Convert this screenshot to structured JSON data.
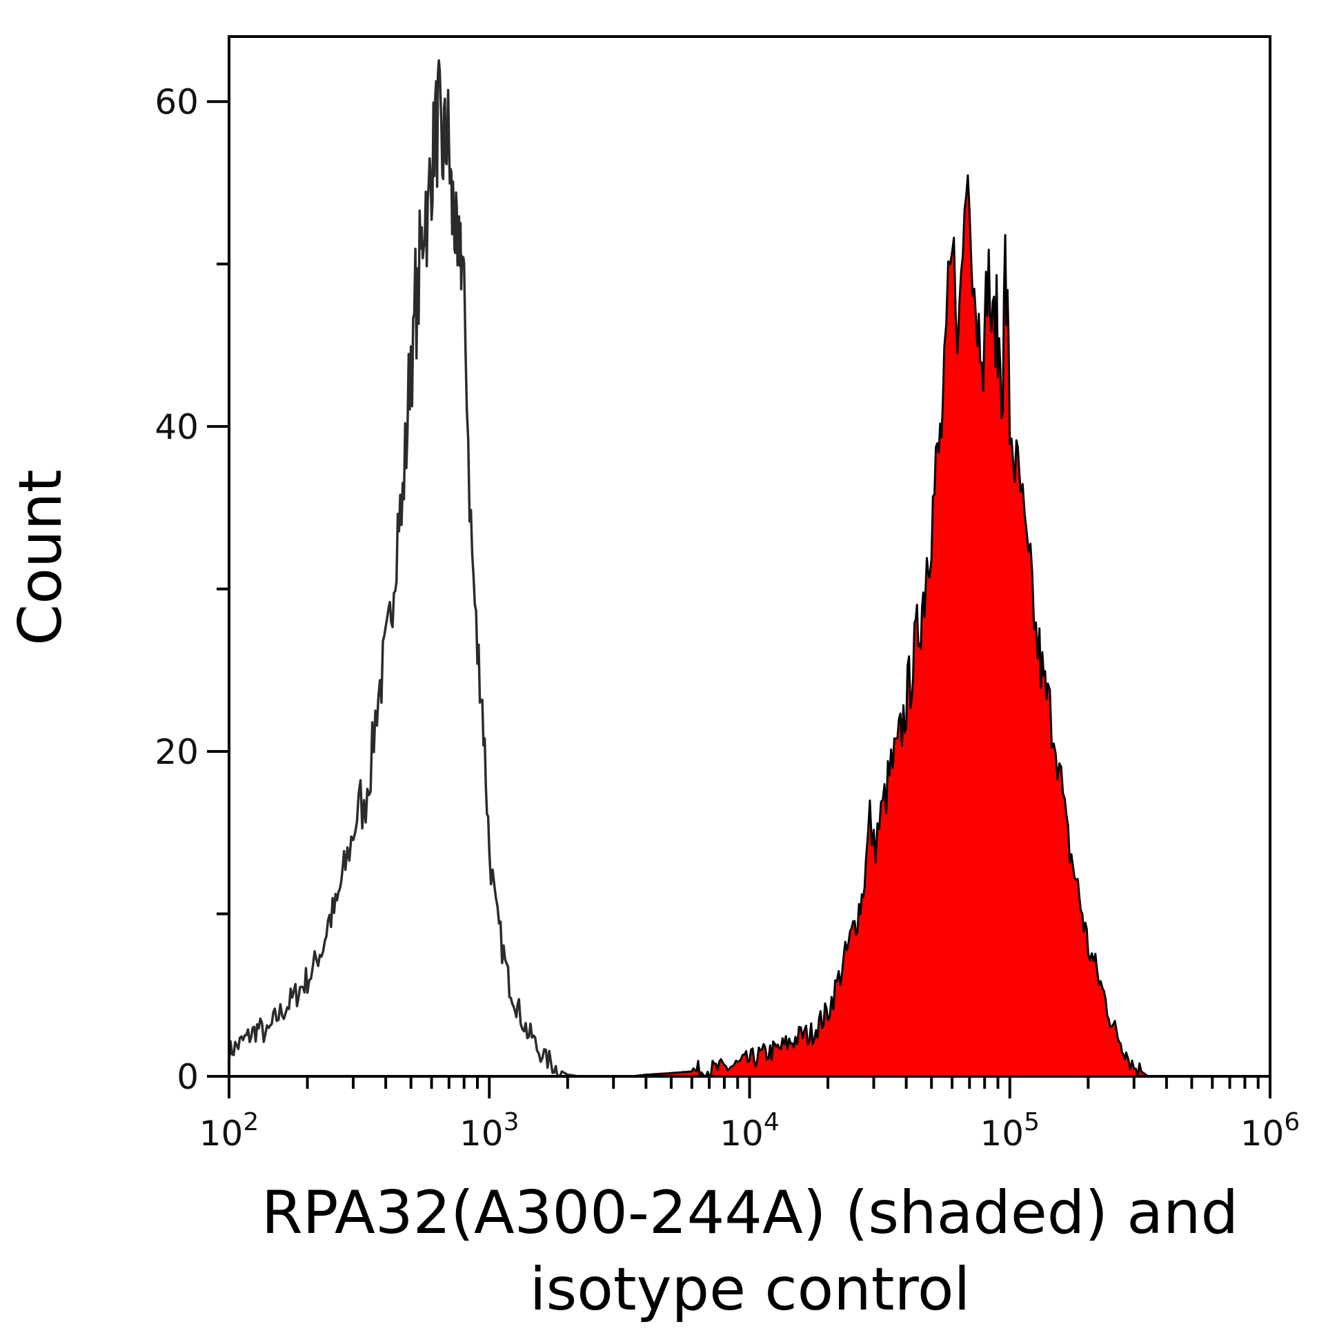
{
  "chart_data": {
    "type": "area",
    "xscale": "log",
    "xlim": [
      100,
      1000000
    ],
    "ylim": [
      0,
      64
    ],
    "grid": false,
    "legend": "none",
    "title": "",
    "xlabel_lines": [
      "RPA32(A300-244A) (shaded) and",
      "isotype control"
    ],
    "ylabel": "Count",
    "x_ticks": [
      {
        "value": 100,
        "base": "10",
        "exp": "2"
      },
      {
        "value": 1000,
        "base": "10",
        "exp": "3"
      },
      {
        "value": 10000,
        "base": "10",
        "exp": "4"
      },
      {
        "value": 100000,
        "base": "10",
        "exp": "5"
      },
      {
        "value": 1000000,
        "base": "10",
        "exp": "6"
      }
    ],
    "y_ticks": [
      {
        "value": 0,
        "label": "0"
      },
      {
        "value": 20,
        "label": "20"
      },
      {
        "value": 40,
        "label": "40"
      },
      {
        "value": 60,
        "label": "60"
      }
    ],
    "y_minor_ticks": [
      10,
      30,
      50
    ],
    "colors": {
      "shaded_fill": "#ff0000",
      "shaded_line": "#000000",
      "outline": "#2b2b2b",
      "axis": "#000000"
    },
    "series": [
      {
        "style": "outline",
        "x": [
          100,
          110,
          120,
          130,
          140,
          150,
          160,
          170,
          180,
          190,
          200,
          210,
          220,
          230,
          240,
          250,
          260,
          270,
          280,
          290,
          300,
          310,
          320,
          330,
          340,
          350,
          360,
          370,
          380,
          390,
          400,
          410,
          420,
          430,
          440,
          450,
          460,
          470,
          480,
          490,
          500,
          510,
          520,
          530,
          540,
          550,
          560,
          570,
          580,
          590,
          600,
          610,
          620,
          630,
          640,
          650,
          660,
          670,
          680,
          690,
          700,
          710,
          720,
          730,
          740,
          750,
          760,
          770,
          780,
          790,
          800,
          820,
          840,
          860,
          880,
          900,
          920,
          940,
          960,
          980,
          1000,
          1030,
          1060,
          1090,
          1120,
          1150,
          1180,
          1210,
          1240,
          1270,
          1300,
          1340,
          1380,
          1420,
          1460,
          1500,
          1550,
          1600,
          1650,
          1700,
          1750,
          1800,
          1850,
          1900,
          1950,
          2000,
          2100,
          2200
        ],
        "y": [
          1.5,
          2,
          2.5,
          3,
          2.5,
          3.5,
          4,
          4.5,
          5,
          5.5,
          6,
          6.5,
          7.5,
          8,
          9.5,
          10,
          10.5,
          12,
          13,
          14,
          15,
          16,
          17,
          16,
          18,
          19,
          21,
          23,
          24,
          25,
          26,
          27,
          29,
          31,
          33,
          35,
          34,
          37,
          39,
          42,
          45,
          44,
          48,
          47,
          50,
          51,
          53,
          54,
          52,
          55,
          56,
          57,
          59,
          58,
          60,
          57,
          56,
          58,
          57,
          59,
          57,
          55,
          53,
          54,
          52,
          50,
          48,
          52,
          51,
          50,
          47,
          43,
          36,
          32,
          29,
          26,
          25,
          23,
          20,
          17,
          14,
          12,
          10,
          9,
          8,
          7,
          6,
          5.5,
          5,
          4.5,
          4,
          3.5,
          3,
          2.5,
          2.5,
          2,
          1.5,
          1.5,
          1,
          1,
          0.7,
          0.5,
          0.4,
          0.3,
          0.2,
          0.1,
          0.05,
          0
        ]
      },
      {
        "style": "shaded",
        "x": [
          3500,
          4000,
          5000,
          6000,
          7000,
          8000,
          9000,
          10000,
          11000,
          12000,
          13000,
          14000,
          15000,
          16000,
          17000,
          18000,
          19000,
          20000,
          21000,
          22000,
          23000,
          24000,
          25000,
          26000,
          27000,
          28000,
          29000,
          30000,
          31000,
          32000,
          33000,
          34000,
          35000,
          36000,
          37000,
          38000,
          39000,
          40000,
          41000,
          42000,
          43000,
          44000,
          45000,
          46000,
          47000,
          48000,
          49000,
          50000,
          52000,
          54000,
          56000,
          58000,
          60000,
          62000,
          64000,
          66000,
          68000,
          70000,
          72000,
          74000,
          76000,
          78000,
          80000,
          82000,
          84000,
          86000,
          88000,
          90000,
          92000,
          94000,
          96000,
          98000,
          100000,
          103000,
          106000,
          110000,
          114000,
          118000,
          122000,
          126000,
          130000,
          135000,
          140000,
          145000,
          150000,
          155000,
          160000,
          165000,
          170000,
          180000,
          190000,
          200000,
          210000,
          220000,
          230000,
          240000,
          250000,
          260000,
          270000,
          280000,
          290000,
          300000,
          320000,
          340000
        ],
        "y": [
          0,
          0.1,
          0.2,
          0.3,
          0.4,
          0.5,
          0.7,
          1,
          1.3,
          1.5,
          1.7,
          2,
          2.3,
          2.6,
          2.5,
          3,
          3.5,
          4,
          5,
          6,
          7,
          8,
          9,
          10,
          11,
          13,
          16,
          14,
          15,
          16,
          17,
          18,
          19,
          19.5,
          20,
          21,
          22,
          23,
          24,
          25,
          26,
          27,
          28,
          29,
          30,
          32,
          33,
          34,
          37,
          39,
          42,
          47,
          50,
          49,
          46,
          51,
          55,
          56,
          51,
          48,
          46,
          47,
          44,
          50,
          48,
          45,
          47,
          45,
          44,
          43,
          50,
          46,
          40,
          39,
          37,
          36,
          33,
          31,
          30,
          27,
          26,
          24,
          23,
          22,
          21,
          19,
          17,
          15,
          14,
          12,
          10,
          8,
          7,
          6,
          5,
          4,
          3,
          2.5,
          2,
          1.5,
          1,
          0.6,
          0.3,
          0
        ]
      }
    ]
  }
}
